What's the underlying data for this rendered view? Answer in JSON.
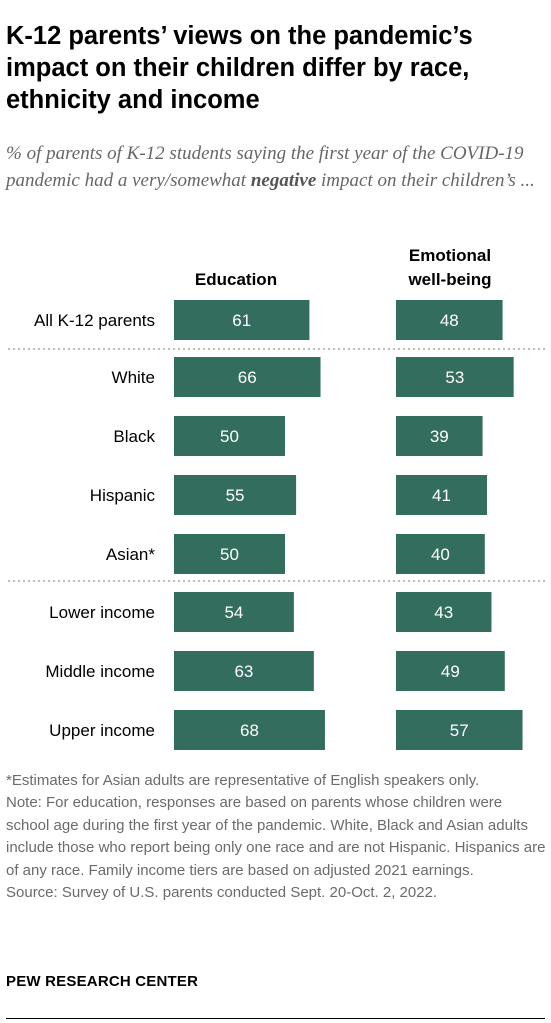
{
  "title": "K-12 parents’ views on the pandemic’s impact on their children differ by race, ethnicity and income",
  "subtitle": {
    "before": "% of parents of K-12 students saying the first year of the COVID-19 pandemic had a very/somewhat ",
    "highlight": "negative",
    "after": " impact on their children’s ..."
  },
  "columns": {
    "education": "Education",
    "wellbeing_line1": "Emotional",
    "wellbeing_line2": "well-being"
  },
  "colors": {
    "bar": "#326d5d",
    "bar_text": "#ffffff",
    "divider": "#bbbbbb"
  },
  "chart_data": {
    "type": "bar",
    "categories": [
      "All K-12 parents",
      "White",
      "Black",
      "Hispanic",
      "Asian*",
      "Lower income",
      "Middle income",
      "Upper income"
    ],
    "series": [
      {
        "name": "Education",
        "values": [
          61,
          66,
          50,
          55,
          50,
          54,
          63,
          68
        ]
      },
      {
        "name": "Emotional well-being",
        "values": [
          48,
          53,
          39,
          41,
          40,
          43,
          49,
          57
        ]
      }
    ],
    "groups": [
      [
        "All K-12 parents"
      ],
      [
        "White",
        "Black",
        "Hispanic",
        "Asian*"
      ],
      [
        "Lower income",
        "Middle income",
        "Upper income"
      ]
    ],
    "xlim": [
      0,
      100
    ]
  },
  "footnotes": {
    "asterisk": "*Estimates for Asian adults are representative of English speakers only.",
    "note": "Note: For education, responses are based on parents whose children were school age during the first year of the pandemic. White, Black and Asian adults include those who report being only one race and are not Hispanic. Hispanics are of any race. Family income tiers are based on adjusted 2021 earnings.",
    "source": "Source: Survey of U.S. parents conducted Sept. 20-Oct. 2, 2022."
  },
  "organization": "PEW RESEARCH CENTER"
}
